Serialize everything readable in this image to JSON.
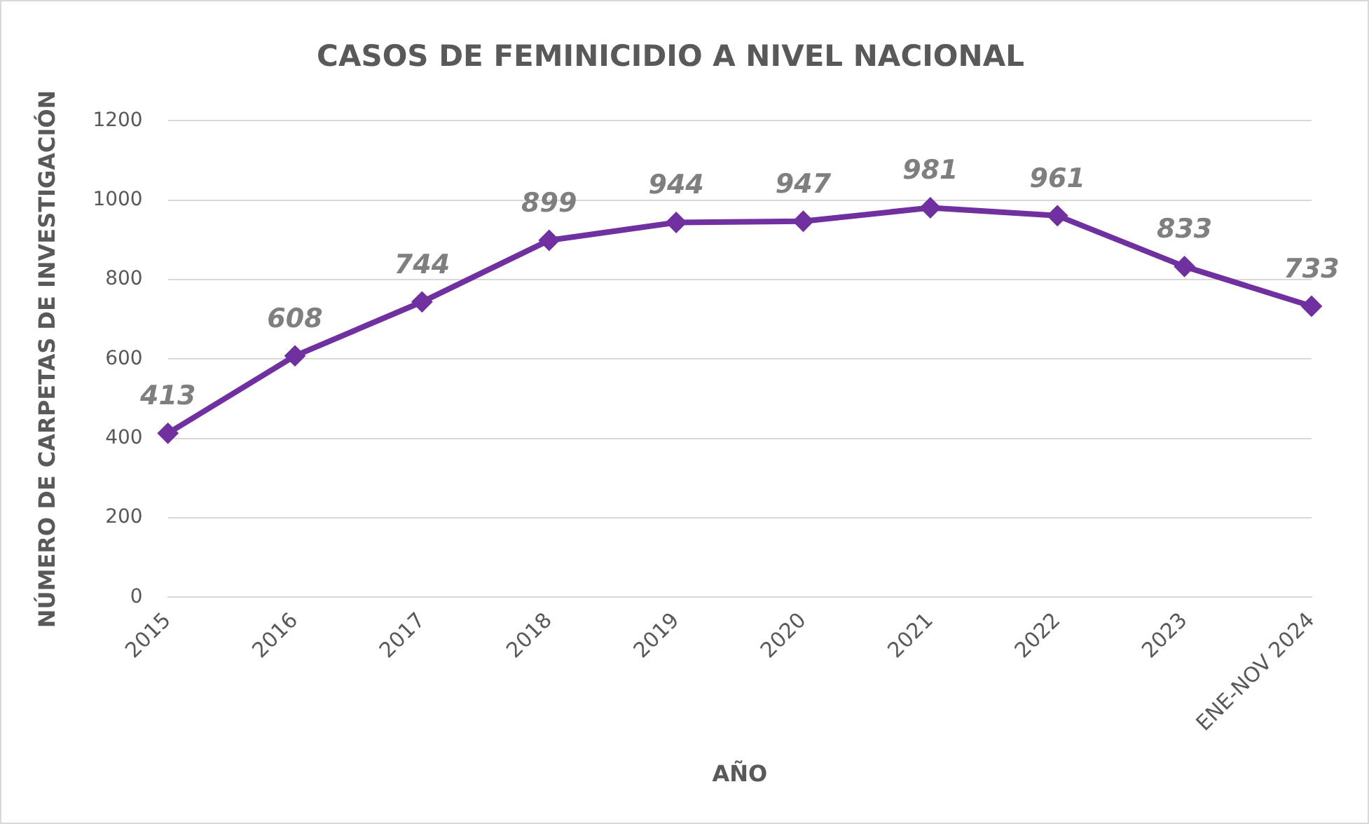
{
  "chart_data": {
    "type": "line",
    "title": "CASOS DE FEMINICIDIO A NIVEL NACIONAL",
    "xlabel": "AÑO",
    "ylabel": "NÚMERO DE CARPETAS DE INVESTIGACIÓN",
    "categories": [
      "2015",
      "2016",
      "2017",
      "2018",
      "2019",
      "2020",
      "2021",
      "2022",
      "2023",
      "ENE-NOV 2024"
    ],
    "series": [
      {
        "color": "#7030a0",
        "values": [
          413,
          608,
          744,
          899,
          944,
          947,
          981,
          961,
          833,
          733
        ]
      }
    ],
    "ylim": [
      0,
      1200
    ],
    "yticks": [
      0,
      200,
      400,
      600,
      800,
      1000,
      1200
    ],
    "grid": "y",
    "marker": "diamond",
    "line_style": "solid",
    "data_labels": true
  }
}
